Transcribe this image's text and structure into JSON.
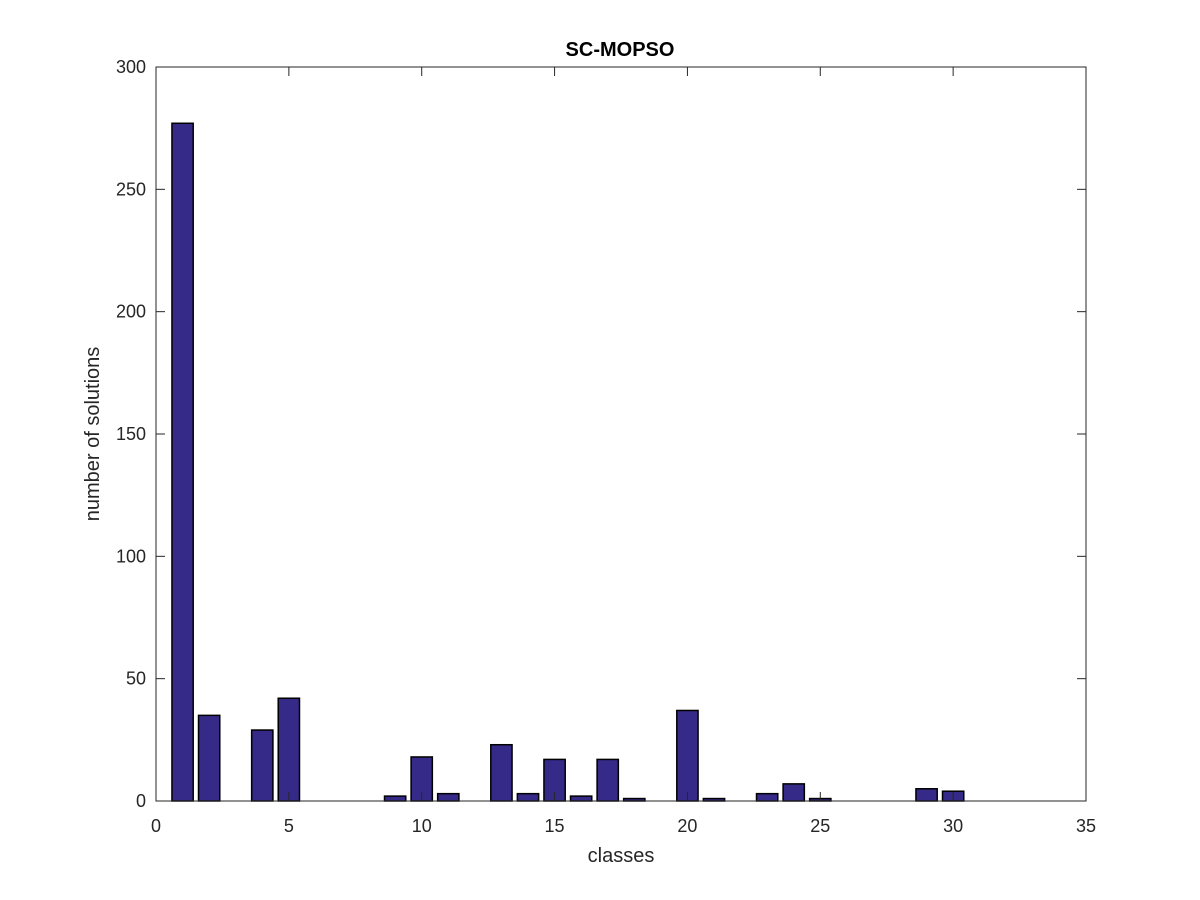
{
  "chart_data": {
    "type": "bar",
    "title": "SC-MOPSO",
    "xlabel": "classes",
    "ylabel": "number of solutions",
    "xlim": [
      0,
      35
    ],
    "ylim": [
      0,
      300
    ],
    "xticks": [
      0,
      5,
      10,
      15,
      20,
      25,
      30,
      35
    ],
    "yticks": [
      0,
      50,
      100,
      150,
      200,
      250,
      300
    ],
    "grid": false,
    "x": [
      1,
      2,
      3,
      4,
      5,
      6,
      7,
      8,
      9,
      10,
      11,
      12,
      13,
      14,
      15,
      16,
      17,
      18,
      19,
      20,
      21,
      22,
      23,
      24,
      25,
      26,
      27,
      28,
      29,
      30
    ],
    "values": [
      277,
      35,
      0,
      29,
      42,
      0,
      0,
      0,
      2,
      18,
      3,
      0,
      23,
      3,
      17,
      2,
      17,
      1,
      0,
      37,
      1,
      0,
      3,
      7,
      1,
      0,
      0,
      0,
      5,
      4
    ],
    "bar_color": "#352a87",
    "bar_edge_color": "#000000"
  }
}
